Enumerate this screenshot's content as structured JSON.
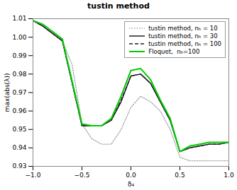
{
  "chart_data": {
    "type": "line",
    "title": "tustin method",
    "xlabel": "δ₄",
    "ylabel": "max(abs(λ))",
    "xlim": [
      -1,
      1
    ],
    "ylim": [
      0.93,
      1.01
    ],
    "xticks": [
      {
        "value": -1,
        "label": "−1.0"
      },
      {
        "value": -0.5,
        "label": "−0.5"
      },
      {
        "value": 0,
        "label": "0.0"
      },
      0.5,
      {
        "value": 1,
        "label": "1.0"
      }
    ],
    "yticks": [
      0.93,
      0.94,
      0.95,
      0.96,
      0.97,
      0.98,
      0.99,
      {
        "value": 1.0,
        "label": "1.00"
      },
      1.01
    ],
    "grid": false,
    "legend": "upper right",
    "x": [
      -1.0,
      -0.9,
      -0.8,
      -0.7,
      -0.6,
      -0.5,
      -0.4,
      -0.3,
      -0.2,
      -0.1,
      0.0,
      0.1,
      0.2,
      0.3,
      0.4,
      0.5,
      0.6,
      0.7,
      0.8,
      0.9,
      1.0
    ],
    "series": [
      {
        "name": "tustin method, nₕ = 10",
        "color": "#aaaaaa",
        "line_style": "dotted",
        "values": [
          1.009,
          1.006,
          1.002,
          0.998,
          0.985,
          0.953,
          0.945,
          0.942,
          0.942,
          0.95,
          0.962,
          0.968,
          0.965,
          0.96,
          0.95,
          0.935,
          0.933,
          0.933,
          0.933,
          0.933,
          0.933
        ]
      },
      {
        "name": "tustin method, nₕ = 30",
        "color": "#111111",
        "line_style": "solid",
        "values": [
          1.009,
          1.006,
          1.002,
          0.998,
          0.975,
          0.952,
          0.952,
          0.952,
          0.955,
          0.965,
          0.979,
          0.98,
          0.975,
          0.965,
          0.955,
          0.938,
          0.94,
          0.941,
          0.942,
          0.942,
          0.943
        ]
      },
      {
        "name": "tustin method, nₕ = 100",
        "color": "#222222",
        "line_style": "dashed",
        "values": [
          1.009,
          1.006,
          1.002,
          0.998,
          0.975,
          0.952,
          0.952,
          0.952,
          0.955,
          0.966,
          0.979,
          0.98,
          0.975,
          0.965,
          0.955,
          0.938,
          0.94,
          0.941,
          0.942,
          0.942,
          0.943
        ]
      },
      {
        "name": "Floquet,  nₕ=100",
        "color": "#00cc00",
        "line_style": "solid",
        "values": [
          1.009,
          1.007,
          1.003,
          0.999,
          0.976,
          0.953,
          0.952,
          0.952,
          0.956,
          0.968,
          0.982,
          0.983,
          0.977,
          0.966,
          0.956,
          0.938,
          0.941,
          0.942,
          0.943,
          0.943,
          0.943
        ]
      }
    ]
  }
}
